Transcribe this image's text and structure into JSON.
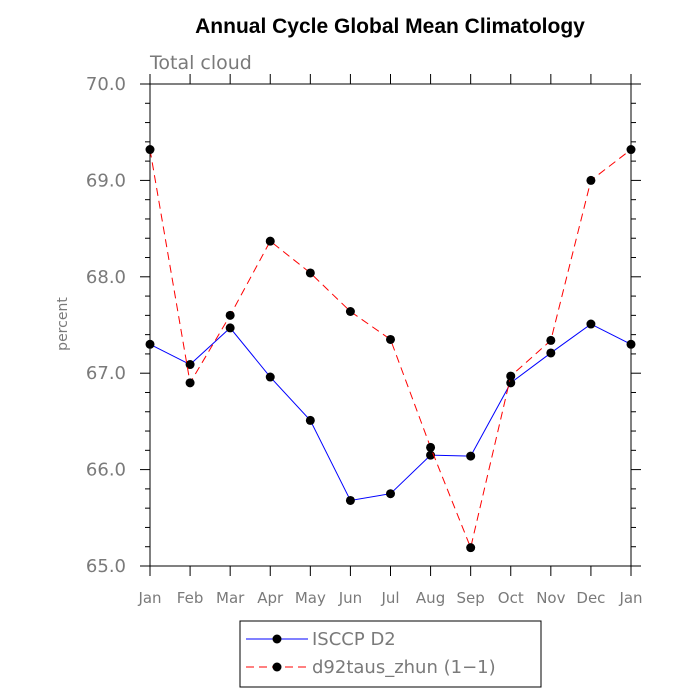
{
  "chart_data": {
    "type": "line",
    "title": "Annual Cycle Global Mean Climatology",
    "subtitle": "Total cloud",
    "xlabel": "",
    "ylabel": "percent",
    "ylim": [
      65.0,
      70.0
    ],
    "yticks": [
      "65.0",
      "66.0",
      "67.0",
      "68.0",
      "69.0",
      "70.0"
    ],
    "categories": [
      "Jan",
      "Feb",
      "Mar",
      "Apr",
      "May",
      "Jun",
      "Jul",
      "Aug",
      "Sep",
      "Oct",
      "Nov",
      "Dec",
      "Jan"
    ],
    "series": [
      {
        "name": "ISCCP D2",
        "color": "#0000ff",
        "dash": "solid",
        "values": [
          67.3,
          67.09,
          67.47,
          66.96,
          66.51,
          65.68,
          65.75,
          66.15,
          66.14,
          66.9,
          67.21,
          67.51,
          67.3
        ]
      },
      {
        "name": "d92taus_zhun (1−1)",
        "color": "#ff0000",
        "dash": "dashed",
        "values": [
          69.32,
          66.9,
          67.6,
          68.37,
          68.04,
          67.64,
          67.35,
          66.23,
          65.19,
          66.97,
          67.34,
          69.0,
          69.32
        ]
      }
    ],
    "legend": "bottom-center",
    "grid": false
  }
}
